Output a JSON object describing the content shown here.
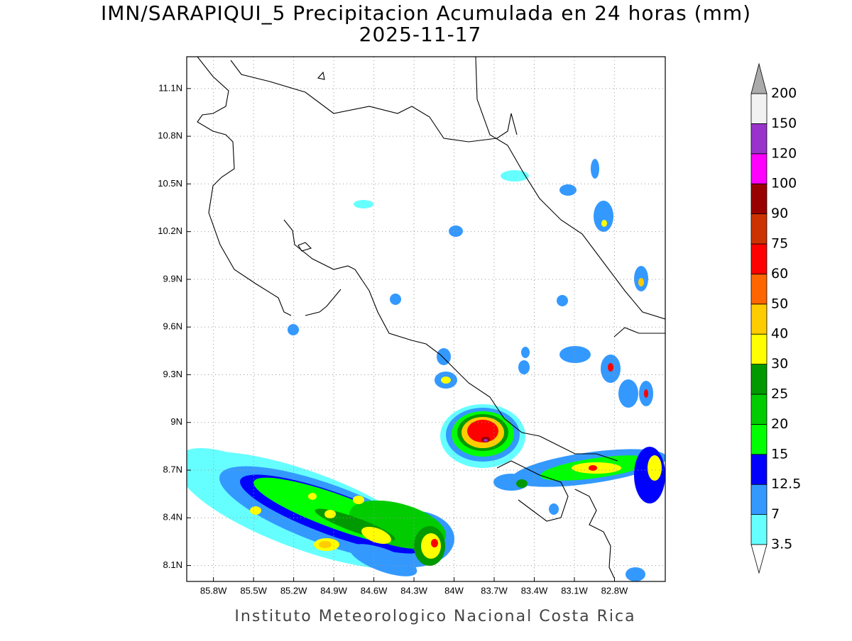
{
  "header": {
    "title": "IMN/SARAPIQUI_5 Precipitacion Acumulada en 24 horas (mm)",
    "subtitle": "2025-11-17"
  },
  "map": {
    "lon_range": [
      -86.0,
      -82.42
    ],
    "lat_range": [
      8.0,
      11.3
    ],
    "lon_ticks": [
      {
        "value": -85.8,
        "label": "85.8W"
      },
      {
        "value": -85.5,
        "label": "85.5W"
      },
      {
        "value": -85.2,
        "label": "85.2W"
      },
      {
        "value": -84.9,
        "label": "84.9W"
      },
      {
        "value": -84.6,
        "label": "84.6W"
      },
      {
        "value": -84.3,
        "label": "84.3W"
      },
      {
        "value": -84.0,
        "label": "84W"
      },
      {
        "value": -83.7,
        "label": "83.7W"
      },
      {
        "value": -83.4,
        "label": "83.4W"
      },
      {
        "value": -83.1,
        "label": "83.1W"
      },
      {
        "value": -82.8,
        "label": "82.8W"
      }
    ],
    "lat_ticks": [
      {
        "value": 8.1,
        "label": "8.1N"
      },
      {
        "value": 8.4,
        "label": "8.4N"
      },
      {
        "value": 8.7,
        "label": "8.7N"
      },
      {
        "value": 9.0,
        "label": "9N"
      },
      {
        "value": 9.3,
        "label": "9.3N"
      },
      {
        "value": 9.6,
        "label": "9.6N"
      },
      {
        "value": 9.9,
        "label": "9.9N"
      },
      {
        "value": 10.2,
        "label": "10.2N"
      },
      {
        "value": 10.5,
        "label": "10.5N"
      },
      {
        "value": 10.8,
        "label": "10.8N"
      },
      {
        "value": 11.1,
        "label": "11.1N"
      }
    ],
    "grid": true
  },
  "colorbar": {
    "levels": [
      3.5,
      7,
      12.5,
      15,
      20,
      25,
      30,
      40,
      50,
      60,
      75,
      90,
      100,
      120,
      150,
      200
    ],
    "colors": [
      "#66ffff",
      "#3399ff",
      "#0000ff",
      "#00ff00",
      "#00cc00",
      "#009900",
      "#ffff00",
      "#ffcc00",
      "#ff6600",
      "#ff0000",
      "#cc3300",
      "#990000",
      "#ff00ff",
      "#9933cc",
      "#f2f2f2"
    ],
    "under_color": "#ffffff",
    "over_color": "#aaaaaa"
  },
  "footer": "Instituto Meteorologico Nacional Costa Rica"
}
